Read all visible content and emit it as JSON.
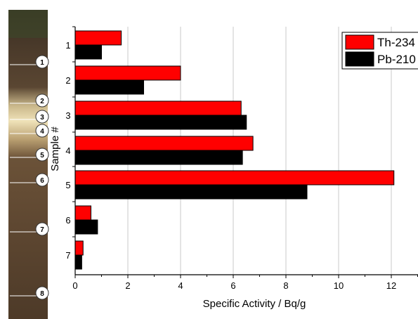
{
  "chart_data": {
    "type": "bar",
    "orientation": "horizontal",
    "categories": [
      "1",
      "2",
      "3",
      "4",
      "5",
      "6",
      "7"
    ],
    "series": [
      {
        "name": "Th-234",
        "color": "#ff0000",
        "values": [
          1.75,
          4.0,
          6.3,
          6.75,
          12.1,
          0.6,
          0.3
        ]
      },
      {
        "name": "Pb-210",
        "color": "#000000",
        "values": [
          1.0,
          2.6,
          6.5,
          6.35,
          8.8,
          0.85,
          0.25
        ]
      }
    ],
    "xlabel": "Specific Activity / Bq/g",
    "ylabel": "Sample #",
    "xlim": [
      0,
      13
    ],
    "xticks": [
      0,
      2,
      4,
      6,
      8,
      10,
      12
    ],
    "grid": "vertical",
    "legend_position": "top-right"
  },
  "core_image": {
    "description_markers": [
      "1",
      "2",
      "3",
      "4",
      "5",
      "6",
      "7",
      "8"
    ]
  }
}
